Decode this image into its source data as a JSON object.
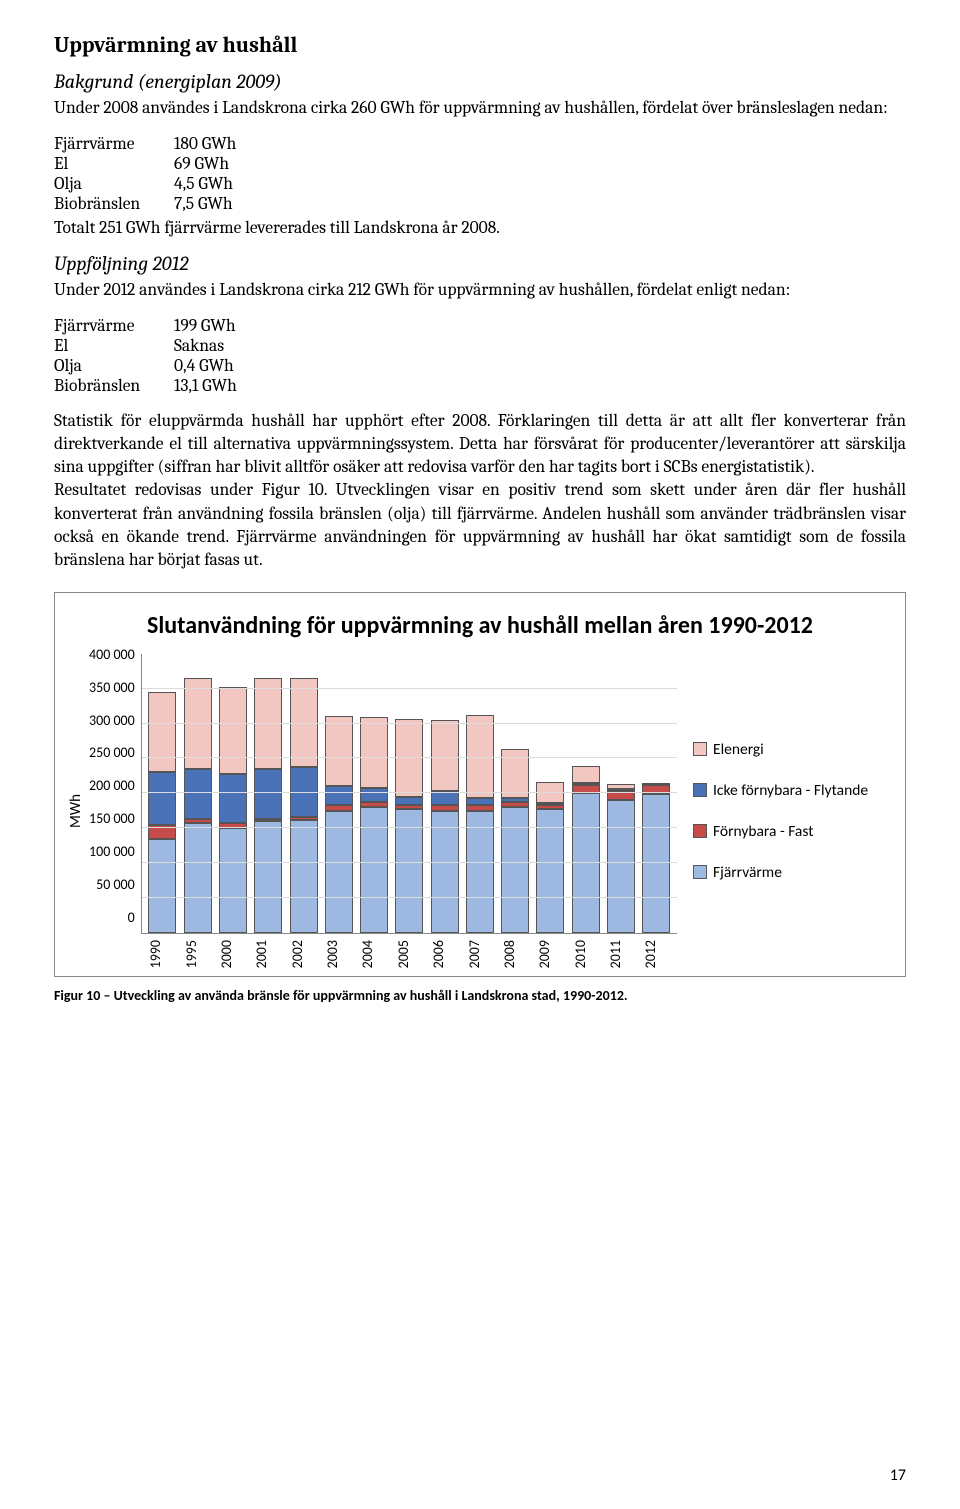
{
  "title": "Uppvärmning av hushåll",
  "section1": {
    "heading": "Bakgrund (energiplan 2009)",
    "intro": "Under 2008 användes i Landskrona cirka 260 GWh för uppvärmning av hushållen, fördelat över bränsleslagen nedan:",
    "rows": [
      {
        "k": "Fjärrvärme",
        "v": "180 GWh"
      },
      {
        "k": "El",
        "v": "69 GWh"
      },
      {
        "k": "Olja",
        "v": "4,5 GWh"
      },
      {
        "k": "Biobränslen",
        "v": "7,5 GWh"
      }
    ],
    "after": "Totalt 251 GWh fjärrvärme levererades till Landskrona år 2008."
  },
  "section2": {
    "heading": "Uppföljning 2012",
    "intro": "Under 2012 användes i Landskrona cirka 212 GWh för uppvärmning av hushållen, fördelat enligt nedan:",
    "rows": [
      {
        "k": "Fjärrvärme",
        "v": "199 GWh"
      },
      {
        "k": "El",
        "v": "Saknas"
      },
      {
        "k": "Olja",
        "v": "0,4 GWh"
      },
      {
        "k": "Biobränslen",
        "v": "13,1 GWh"
      }
    ]
  },
  "body_paras": [
    "Statistik för eluppvärmda hushåll har upphört efter 2008. Förklaringen till detta är att allt fler konverterar från direktverkande el till alternativa uppvärmningssystem. Detta har försvårat för producenter/leverantörer att särskilja sina uppgifter (siffran har blivit alltför osäker att redovisa varför den har tagits bort i SCBs energistatistik).",
    "Resultatet redovisas under Figur 10. Utvecklingen visar en positiv trend som skett under åren där fler hushåll konverterat från användning fossila bränslen (olja) till fjärrvärme. Andelen hushåll som använder trädbränslen visar också en ökande trend. Fjärrvärme användningen för uppvärmning av hushåll har ökat samtidigt som de fossila bränslena har börjat fasas ut."
  ],
  "chart": {
    "title": "Slutanvändning för uppvärmning av hushåll mellan åren 1990-2012",
    "ylabel": "MWh",
    "ymax": 400000,
    "ytick_step": 50000,
    "yticks": [
      "400 000",
      "350 000",
      "300 000",
      "250 000",
      "200 000",
      "150 000",
      "100 000",
      "50 000",
      "0"
    ],
    "categories": [
      "1990",
      "1995",
      "2000",
      "2001",
      "2002",
      "2003",
      "2004",
      "2005",
      "2006",
      "2007",
      "2008",
      "2009",
      "2010",
      "2011",
      "2012"
    ],
    "series": [
      {
        "name": "Fjärrvärme",
        "color": "#9db9e1",
        "legend": "Fjärrvärme"
      },
      {
        "name": "Förnybara - Fast",
        "color": "#c64b49",
        "legend": "Förnybara - Fast"
      },
      {
        "name": "Icke förnybara - Flytande",
        "color": "#4a72b8",
        "legend": "Icke förnybara - Flytande"
      },
      {
        "name": "Elenergi",
        "color": "#f2c7c2",
        "legend": "Elenergi"
      }
    ],
    "values": {
      "Fjärrvärme": [
        135000,
        158000,
        150000,
        160000,
        162000,
        175000,
        180000,
        178000,
        175000,
        175000,
        180000,
        178000,
        200000,
        190000,
        199000
      ],
      "Förnybara - Fast": [
        20000,
        5000,
        8000,
        2000,
        4000,
        8000,
        8000,
        5000,
        8000,
        8000,
        8000,
        6000,
        12000,
        13000,
        13000
      ],
      "Icke förnybara - Flytande": [
        75000,
        72000,
        70000,
        72000,
        72000,
        28000,
        20000,
        12000,
        20000,
        10000,
        5000,
        2000,
        2000,
        1000,
        500
      ],
      "Elenergi": [
        115000,
        130000,
        125000,
        130000,
        128000,
        100000,
        102000,
        112000,
        102000,
        120000,
        70000,
        30000,
        25000,
        8000,
        0
      ]
    },
    "background_color": "#ffffff",
    "grid_color": "#dcdcdc",
    "caption": "Figur 10 – Utveckling av använda bränsle för uppvärmning av hushåll i Landskrona stad, 1990-2012."
  },
  "page_number": "17"
}
